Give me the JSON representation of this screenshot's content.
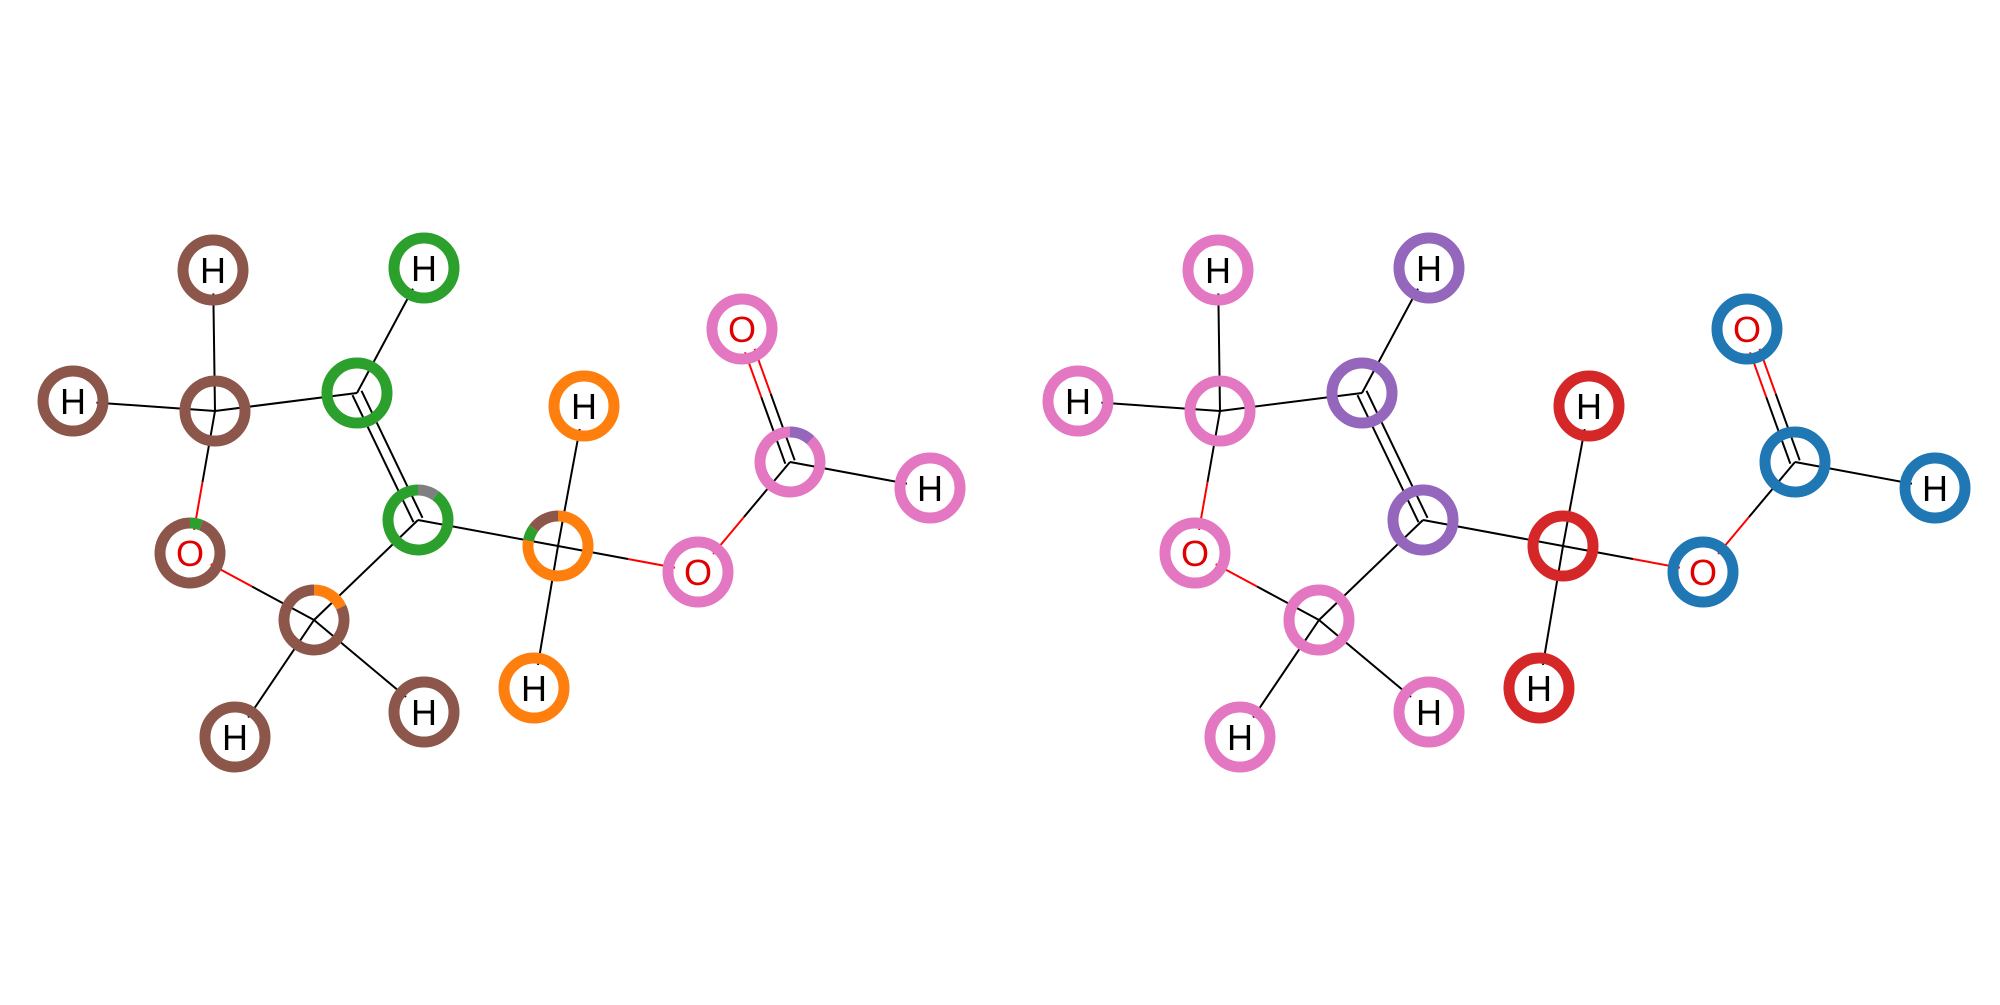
{
  "colors": {
    "brown": "#8c564b",
    "green": "#2ca02c",
    "orange": "#ff7f0e",
    "pink": "#e377c2",
    "purple": "#9467bd",
    "red": "#d62728",
    "blue": "#1f77b4",
    "gray": "#7f7f7f",
    "bond_black": "#000000",
    "bond_red": "#ff0000",
    "label_H": "#000000",
    "label_O": "#e00000"
  },
  "left_molecule": {
    "atoms": [
      {
        "id": "H1",
        "element": "H",
        "ring": [
          {
            "color": "brown",
            "frac": 1.0
          }
        ]
      },
      {
        "id": "H2",
        "element": "H",
        "ring": [
          {
            "color": "green",
            "frac": 1.0
          }
        ]
      },
      {
        "id": "H3",
        "element": "H",
        "ring": [
          {
            "color": "brown",
            "frac": 1.0
          }
        ]
      },
      {
        "id": "C1",
        "element": "C",
        "ring": [
          {
            "color": "brown",
            "frac": 1.0
          }
        ]
      },
      {
        "id": "C2",
        "element": "C",
        "ring": [
          {
            "color": "green",
            "frac": 1.0
          }
        ]
      },
      {
        "id": "O1",
        "element": "O",
        "ring": [
          {
            "color": "green",
            "frac": 0.06
          },
          {
            "color": "brown",
            "frac": 0.94
          }
        ]
      },
      {
        "id": "C3",
        "element": "C",
        "ring": [
          {
            "color": "gray",
            "frac": 0.1
          },
          {
            "color": "green",
            "frac": 0.9
          }
        ]
      },
      {
        "id": "C4",
        "element": "C",
        "ring": [
          {
            "color": "orange",
            "frac": 0.18
          },
          {
            "color": "brown",
            "frac": 0.82
          }
        ]
      },
      {
        "id": "H4",
        "element": "H",
        "ring": [
          {
            "color": "brown",
            "frac": 1.0
          }
        ]
      },
      {
        "id": "H5",
        "element": "H",
        "ring": [
          {
            "color": "brown",
            "frac": 1.0
          }
        ]
      },
      {
        "id": "C5",
        "element": "C",
        "ring": [
          {
            "color": "orange",
            "frac": 0.78
          },
          {
            "color": "green",
            "frac": 0.07
          },
          {
            "color": "brown",
            "frac": 0.15
          }
        ]
      },
      {
        "id": "H6",
        "element": "H",
        "ring": [
          {
            "color": "orange",
            "frac": 1.0
          }
        ]
      },
      {
        "id": "H7",
        "element": "H",
        "ring": [
          {
            "color": "orange",
            "frac": 1.0
          }
        ]
      },
      {
        "id": "O2",
        "element": "O",
        "ring": [
          {
            "color": "pink",
            "frac": 1.0
          }
        ]
      },
      {
        "id": "C6",
        "element": "C",
        "ring": [
          {
            "color": "purple",
            "frac": 0.12
          },
          {
            "color": "pink",
            "frac": 0.88
          }
        ]
      },
      {
        "id": "O3",
        "element": "O",
        "ring": [
          {
            "color": "pink",
            "frac": 1.0
          }
        ]
      },
      {
        "id": "H8",
        "element": "H",
        "ring": [
          {
            "color": "pink",
            "frac": 1.0
          }
        ]
      }
    ]
  },
  "right_molecule": {
    "atoms": [
      {
        "id": "H1",
        "element": "H",
        "ring": [
          {
            "color": "pink",
            "frac": 1.0
          }
        ]
      },
      {
        "id": "H2",
        "element": "H",
        "ring": [
          {
            "color": "purple",
            "frac": 1.0
          }
        ]
      },
      {
        "id": "H3",
        "element": "H",
        "ring": [
          {
            "color": "pink",
            "frac": 1.0
          }
        ]
      },
      {
        "id": "C1",
        "element": "C",
        "ring": [
          {
            "color": "pink",
            "frac": 1.0
          }
        ]
      },
      {
        "id": "C2",
        "element": "C",
        "ring": [
          {
            "color": "purple",
            "frac": 1.0
          }
        ]
      },
      {
        "id": "O1",
        "element": "O",
        "ring": [
          {
            "color": "pink",
            "frac": 1.0
          }
        ]
      },
      {
        "id": "C3",
        "element": "C",
        "ring": [
          {
            "color": "purple",
            "frac": 1.0
          }
        ]
      },
      {
        "id": "C4",
        "element": "C",
        "ring": [
          {
            "color": "pink",
            "frac": 1.0
          }
        ]
      },
      {
        "id": "H4",
        "element": "H",
        "ring": [
          {
            "color": "pink",
            "frac": 1.0
          }
        ]
      },
      {
        "id": "H5",
        "element": "H",
        "ring": [
          {
            "color": "pink",
            "frac": 1.0
          }
        ]
      },
      {
        "id": "C5",
        "element": "C",
        "ring": [
          {
            "color": "red",
            "frac": 1.0
          }
        ]
      },
      {
        "id": "H6",
        "element": "H",
        "ring": [
          {
            "color": "red",
            "frac": 1.0
          }
        ]
      },
      {
        "id": "H7",
        "element": "H",
        "ring": [
          {
            "color": "red",
            "frac": 1.0
          }
        ]
      },
      {
        "id": "O2",
        "element": "O",
        "ring": [
          {
            "color": "blue",
            "frac": 1.0
          }
        ]
      },
      {
        "id": "C6",
        "element": "C",
        "ring": [
          {
            "color": "blue",
            "frac": 1.0
          }
        ]
      },
      {
        "id": "O3",
        "element": "O",
        "ring": [
          {
            "color": "blue",
            "frac": 1.0
          }
        ]
      },
      {
        "id": "H8",
        "element": "H",
        "ring": [
          {
            "color": "blue",
            "frac": 1.0
          }
        ]
      }
    ]
  },
  "bonds": [
    {
      "a": "H1",
      "b": "C1",
      "order": 1,
      "hetero": false
    },
    {
      "a": "H3",
      "b": "C1",
      "order": 1,
      "hetero": false
    },
    {
      "a": "C1",
      "b": "C2",
      "order": 1,
      "hetero": false
    },
    {
      "a": "C1",
      "b": "O1",
      "order": 1,
      "hetero": true
    },
    {
      "a": "H2",
      "b": "C2",
      "order": 1,
      "hetero": false
    },
    {
      "a": "C2",
      "b": "C3",
      "order": 2,
      "hetero": false
    },
    {
      "a": "O1",
      "b": "C4",
      "order": 1,
      "hetero": true
    },
    {
      "a": "C4",
      "b": "C3",
      "order": 1,
      "hetero": false
    },
    {
      "a": "C4",
      "b": "H4",
      "order": 1,
      "hetero": false
    },
    {
      "a": "C4",
      "b": "H5",
      "order": 1,
      "hetero": false
    },
    {
      "a": "C3",
      "b": "C5",
      "order": 1,
      "hetero": false
    },
    {
      "a": "C5",
      "b": "H6",
      "order": 1,
      "hetero": false
    },
    {
      "a": "C5",
      "b": "H7",
      "order": 1,
      "hetero": false
    },
    {
      "a": "C5",
      "b": "O2",
      "order": 1,
      "hetero": true
    },
    {
      "a": "O2",
      "b": "C6",
      "order": 1,
      "hetero": true
    },
    {
      "a": "C6",
      "b": "O3",
      "order": 2,
      "hetero": true
    },
    {
      "a": "C6",
      "b": "H8",
      "order": 1,
      "hetero": false
    }
  ]
}
